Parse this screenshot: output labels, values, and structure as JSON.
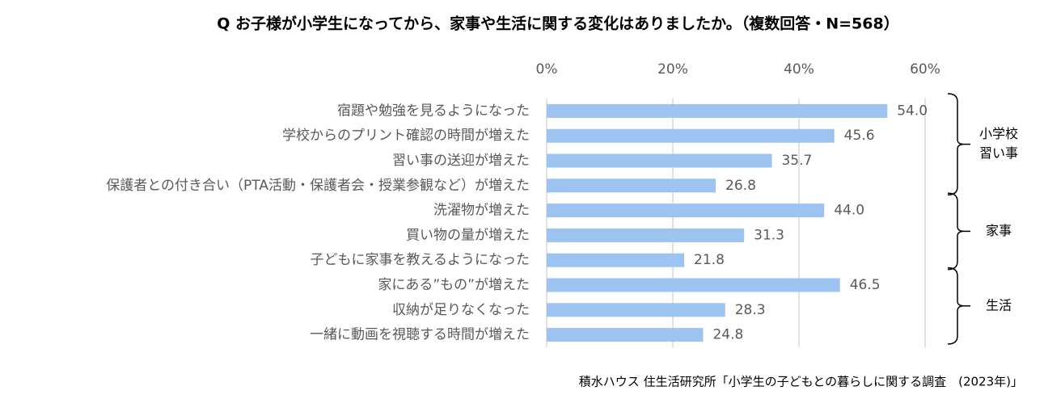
{
  "chart_data": {
    "type": "bar",
    "orientation": "horizontal",
    "title": "Q お子様が小学生になってから、家事や生活に関する変化はありましたか。（複数回答・N=568）",
    "source": "積水ハウス 住生活研究所「小学生の子どもとの暮らしに関する調査　(2023年)」",
    "categories": [
      "宿題や勉強を見るようになった",
      "学校からのプリント確認の時間が増えた",
      "習い事の送迎が増えた",
      "保護者との付き合い（PTA活動・保護者会・授業参観など）が増えた",
      "洗濯物が増えた",
      "買い物の量が増えた",
      "子どもに家事を教えるようになった",
      "家にある”もの”が増えた",
      "収納が足りなくなった",
      "一緒に動画を視聴する時間が増えた"
    ],
    "values": [
      54.0,
      45.6,
      35.7,
      26.8,
      44.0,
      31.3,
      21.8,
      46.5,
      28.3,
      24.8
    ],
    "value_labels": [
      "54.0",
      "45.6",
      "35.7",
      "26.8",
      "44.0",
      "31.3",
      "21.8",
      "46.5",
      "28.3",
      "24.8"
    ],
    "color": "#9dc3f0",
    "xlim": [
      0,
      60
    ],
    "xticks": [
      {
        "value": 0,
        "label": "0%"
      },
      {
        "value": 20,
        "label": "20%"
      },
      {
        "value": 40,
        "label": "40%"
      },
      {
        "value": 60,
        "label": "60%"
      }
    ],
    "grid": true,
    "groups": [
      {
        "label": [
          "小学校",
          "習い事"
        ],
        "size": 4
      },
      {
        "label": [
          "家事"
        ],
        "size": 3
      },
      {
        "label": [
          "生活"
        ],
        "size": 3
      }
    ]
  }
}
